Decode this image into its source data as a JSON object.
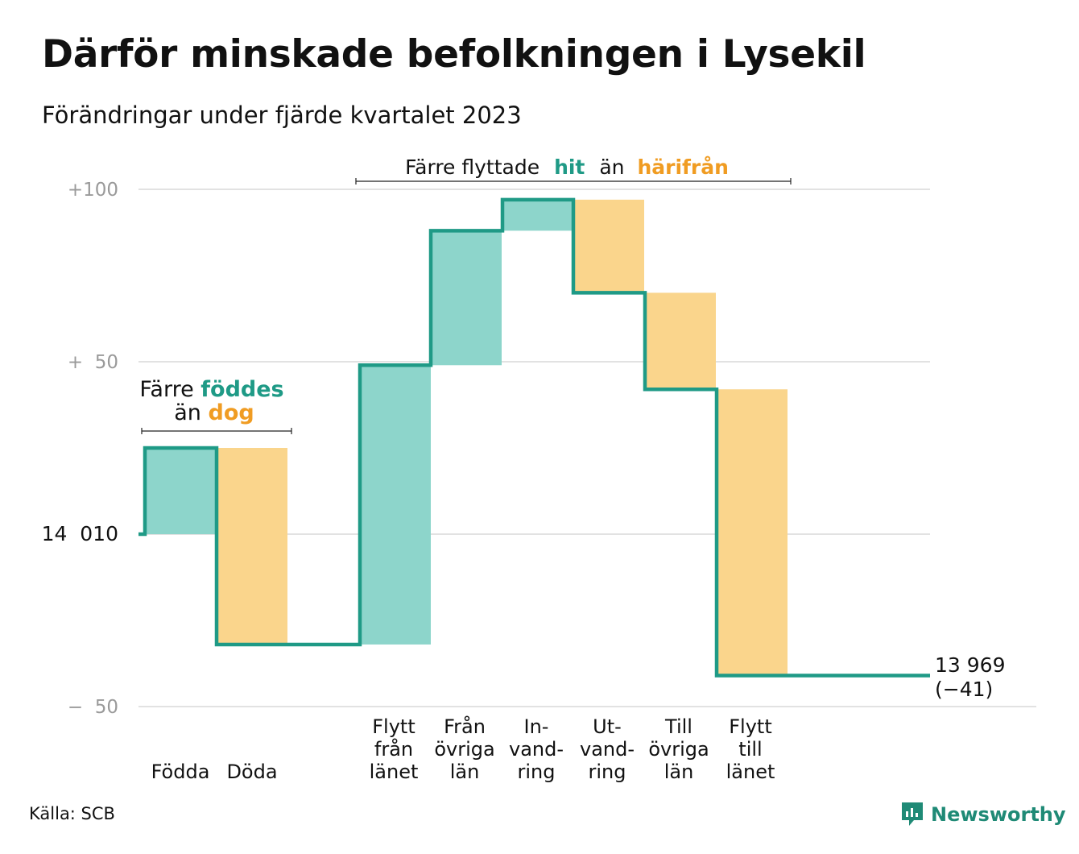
{
  "title": "Därför minskade befolkningen i Lysekil",
  "subtitle": "Förändringar under fjärde kvartalet 2023",
  "source": "Källa: SCB",
  "logo_text": "Newsworthy",
  "colors": {
    "increase_fill": "#8dd5cb",
    "decrease_fill": "#fad58c",
    "line": "#1f9a86",
    "increase_text": "#1f9a86",
    "decrease_text": "#f09c22",
    "grid": "#e2e2e2",
    "tick_text": "#9a9a9a"
  },
  "annotations": {
    "births": {
      "pre": "Färre",
      "hi1": "föddes",
      "mid": "än",
      "hi2": "dog"
    },
    "migration": {
      "pre": "Färre flyttade",
      "hi1": "hit",
      "mid": "än",
      "hi2": "härifrån"
    }
  },
  "chart_data": {
    "type": "waterfall",
    "title": "Därför minskade befolkningen i Lysekil",
    "subtitle": "Förändringar under fjärde kvartalet 2023",
    "start_label": "14 010",
    "start_value": 14010,
    "end_label": "13 969",
    "end_change_label": "(−41)",
    "end_value": 13969,
    "ylim": [
      -50,
      100
    ],
    "y_ticks": [
      {
        "value": 100,
        "label": "+100"
      },
      {
        "value": 50,
        "label": "+  50"
      },
      {
        "value": 0,
        "label": "14  010"
      },
      {
        "value": -50,
        "label": "−  50"
      }
    ],
    "grid": true,
    "steps": [
      {
        "label": [
          "Födda"
        ],
        "change": 25,
        "kind": "increase"
      },
      {
        "label": [
          "Döda"
        ],
        "change": -57,
        "kind": "decrease"
      },
      {
        "label": [
          "Flytt",
          "från",
          "länet"
        ],
        "change": 81,
        "kind": "increase"
      },
      {
        "label": [
          "Från",
          "övriga",
          "län"
        ],
        "change": 39,
        "kind": "increase"
      },
      {
        "label": [
          "In-",
          "vand-",
          "ring"
        ],
        "change": 9,
        "kind": "increase"
      },
      {
        "label": [
          "Ut-",
          "vand-",
          "ring"
        ],
        "change": -27,
        "kind": "decrease"
      },
      {
        "label": [
          "Till",
          "övriga",
          "län"
        ],
        "change": -28,
        "kind": "decrease"
      },
      {
        "label": [
          "Flytt",
          "till",
          "länet"
        ],
        "change": -83,
        "kind": "decrease"
      }
    ]
  }
}
